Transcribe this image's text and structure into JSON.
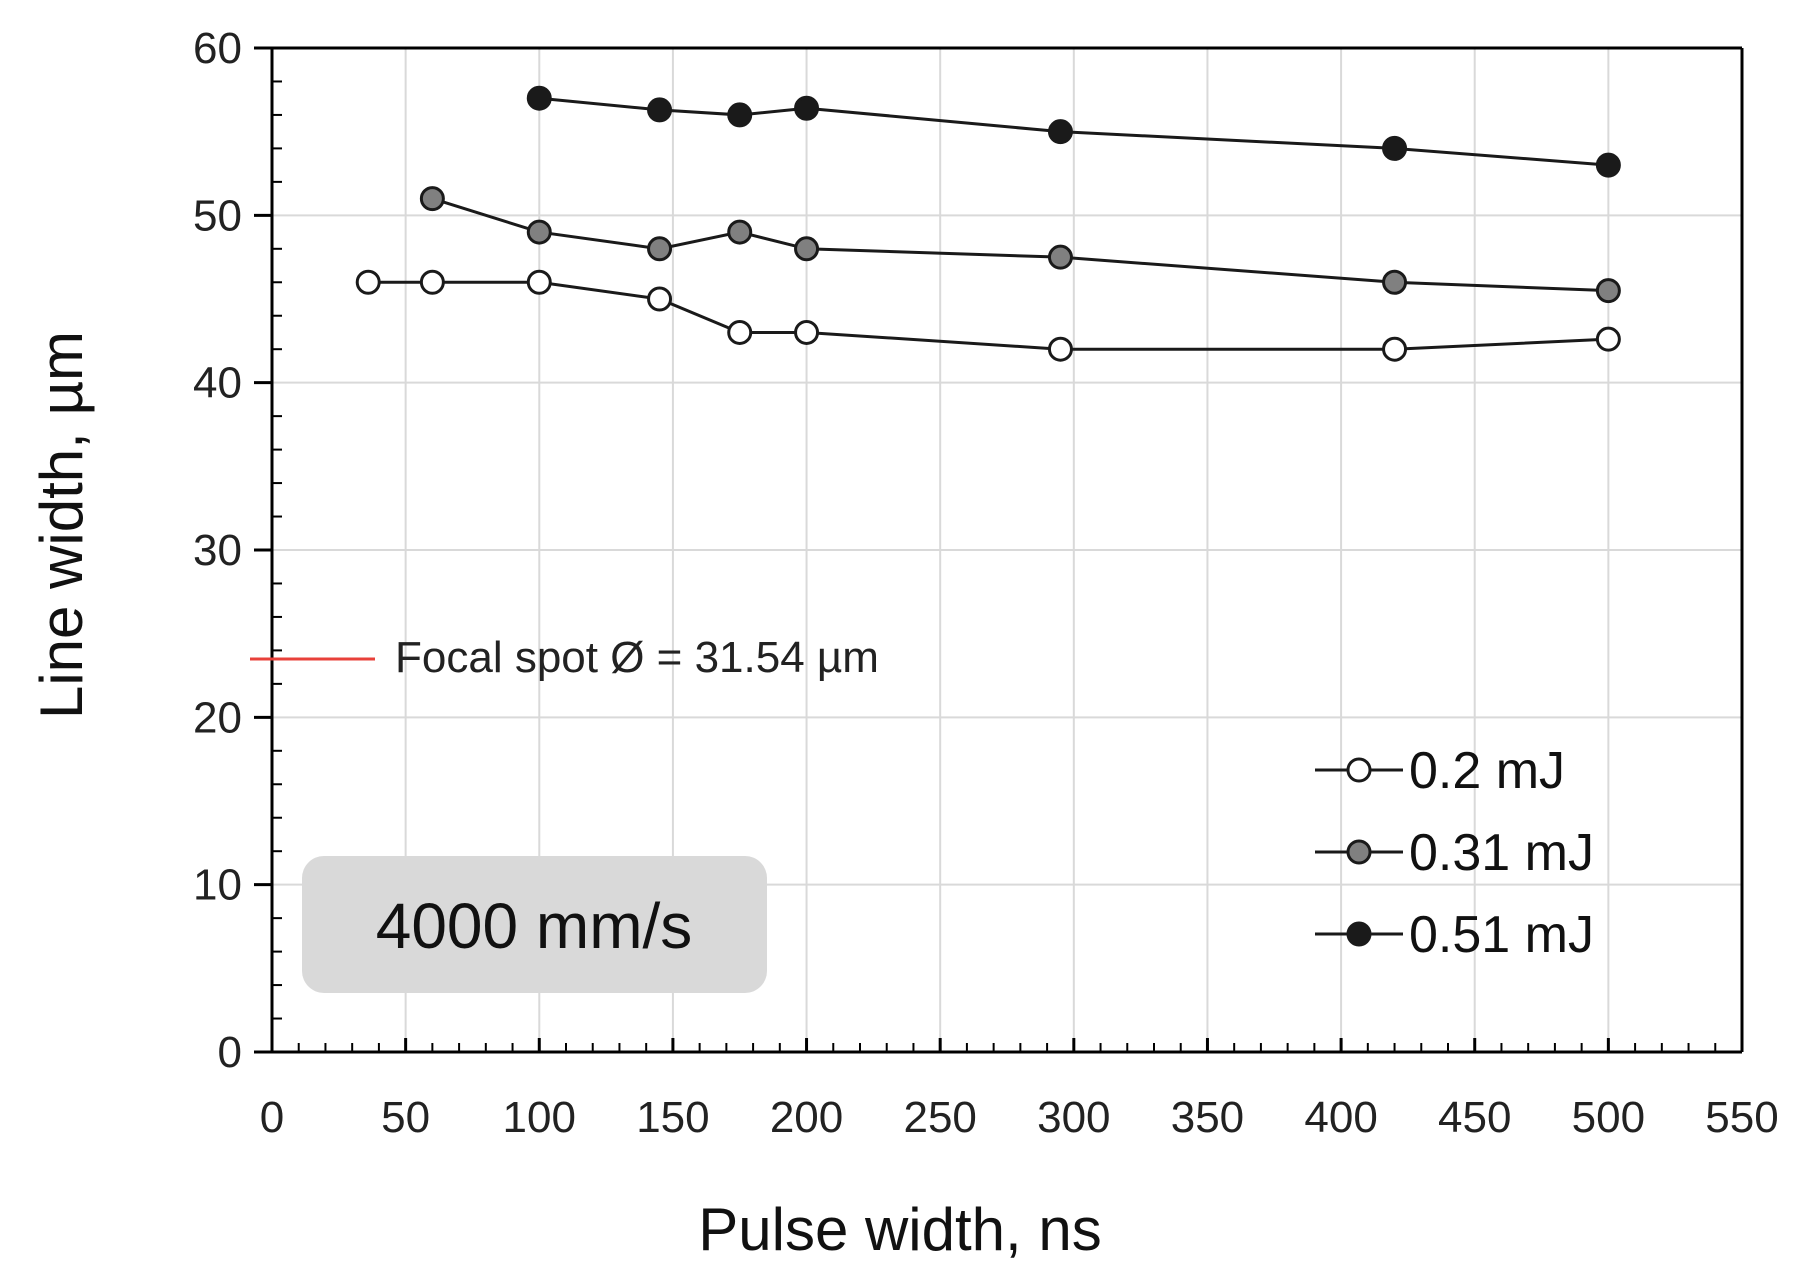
{
  "chart_data": {
    "type": "line",
    "title": "",
    "xlabel": "Pulse width, ns",
    "ylabel": "Line width, µm",
    "xlim": [
      0,
      550
    ],
    "ylim": [
      0,
      60
    ],
    "x_ticks": [
      "0",
      "50",
      "100",
      "150",
      "200",
      "250",
      "300",
      "350",
      "400",
      "450",
      "500",
      "550"
    ],
    "y_ticks": [
      "0",
      "10",
      "20",
      "30",
      "40",
      "50",
      "60"
    ],
    "grid": true,
    "legend_position": "bottom-right",
    "series": [
      {
        "name": "0.2 mJ",
        "marker_fill": "#ffffff",
        "x": [
          36,
          60,
          100,
          145,
          175,
          200,
          295,
          420,
          500
        ],
        "y": [
          46,
          46,
          46,
          45,
          43,
          43,
          42,
          42,
          42.6
        ]
      },
      {
        "name": "0.31 mJ",
        "marker_fill": "#808080",
        "x": [
          60,
          100,
          145,
          175,
          200,
          295,
          420,
          500
        ],
        "y": [
          51,
          49,
          48,
          49,
          48,
          47.5,
          46,
          45.5
        ]
      },
      {
        "name": "0.51 mJ",
        "marker_fill": "#1a1a1a",
        "x": [
          100,
          145,
          175,
          200,
          295,
          420,
          500
        ],
        "y": [
          57,
          56.3,
          56,
          56.4,
          55,
          54,
          53
        ]
      }
    ],
    "annotations": {
      "focal_spot_label": "Focal spot Ø = 31.54 µm",
      "focal_spot_color": "#e8403a",
      "speed_label": "4000 mm/s"
    }
  }
}
